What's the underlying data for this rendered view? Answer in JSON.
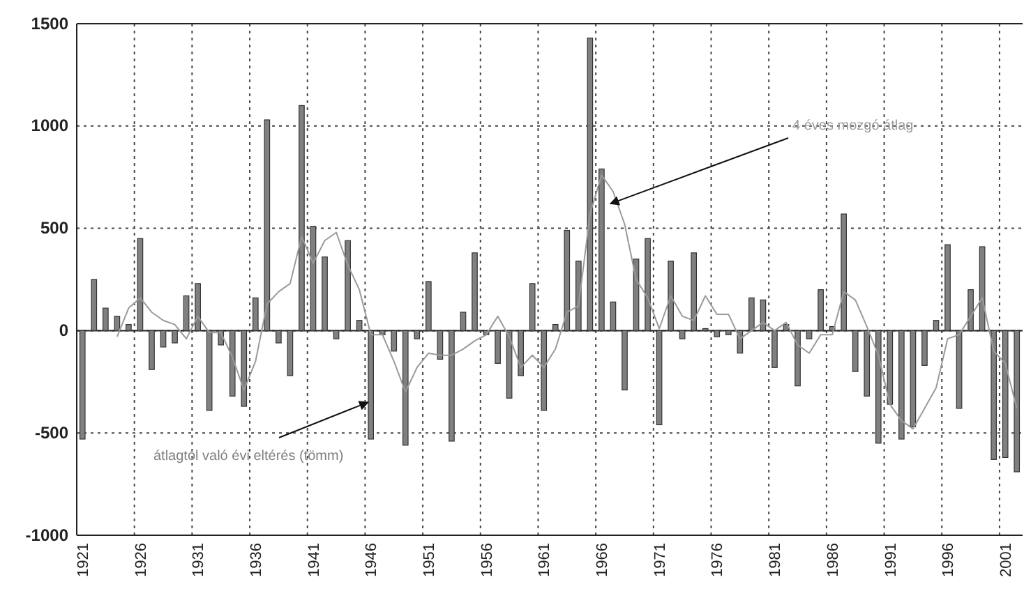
{
  "chart_data": {
    "type": "bar",
    "categories": [
      "1921",
      null,
      null,
      null,
      null,
      "1926",
      null,
      null,
      null,
      null,
      "1931",
      null,
      null,
      null,
      null,
      "1936",
      null,
      null,
      null,
      null,
      "1941",
      null,
      null,
      null,
      null,
      "1946",
      null,
      null,
      null,
      null,
      "1951",
      null,
      null,
      null,
      null,
      "1956",
      null,
      null,
      null,
      null,
      "1961",
      null,
      null,
      null,
      null,
      "1966",
      null,
      null,
      null,
      null,
      "1971",
      null,
      null,
      null,
      null,
      "1976",
      null,
      null,
      null,
      null,
      "1981",
      null,
      null,
      null,
      null,
      "1986",
      null,
      null,
      null,
      null,
      "1991",
      null,
      null,
      null,
      null,
      "1996",
      null,
      null,
      null,
      null,
      "2001",
      null
    ],
    "series": [
      {
        "name": "átlagtól való évi eltérés (tömm)",
        "color": "#808080",
        "values": [
          -530,
          250,
          110,
          70,
          30,
          450,
          -190,
          -80,
          -60,
          170,
          230,
          -390,
          -70,
          -320,
          -370,
          160,
          1030,
          -60,
          -220,
          1100,
          510,
          360,
          -40,
          440,
          50,
          -530,
          -20,
          -100,
          -560,
          -40,
          240,
          -140,
          -540,
          90,
          380,
          -20,
          -160,
          -330,
          -220,
          230,
          -390,
          30,
          490,
          340,
          1430,
          790,
          140,
          -290,
          350,
          450,
          -460,
          340,
          -40,
          380,
          10,
          -30,
          -20,
          -110,
          160,
          150,
          -180,
          30,
          -270,
          -40,
          200,
          20,
          570,
          -200,
          -320,
          -550,
          -360,
          -530,
          -470,
          -170,
          50,
          420,
          -380,
          200,
          410,
          -630,
          -620,
          -690
        ]
      },
      {
        "name": "4 éves mozgó átlag",
        "type": "line",
        "color": "#9a9a9a",
        "values": [
          null,
          null,
          null,
          -30,
          110,
          160,
          90,
          50,
          30,
          -40,
          70,
          -10,
          -10,
          -130,
          -290,
          -150,
          130,
          190,
          230,
          460,
          330,
          440,
          480,
          320,
          200,
          -20,
          -20,
          -150,
          -300,
          -180,
          -110,
          -120,
          -120,
          -90,
          -50,
          -20,
          70,
          -30,
          -180,
          -120,
          -180,
          -90,
          90,
          120,
          570,
          760,
          680,
          520,
          250,
          160,
          10,
          170,
          70,
          50,
          170,
          80,
          80,
          -40,
          0,
          40,
          0,
          40,
          -70,
          -110,
          -20,
          -20,
          190,
          150,
          20,
          -120,
          -360,
          -440,
          -480,
          -380,
          -280,
          -40,
          -20,
          70,
          160,
          -100,
          -160,
          -380
        ]
      }
    ],
    "ylim": [
      -1000,
      1500
    ],
    "yticks": [
      -1000,
      -500,
      0,
      500,
      1000,
      1500
    ],
    "grid": true,
    "legend": false
  }
}
